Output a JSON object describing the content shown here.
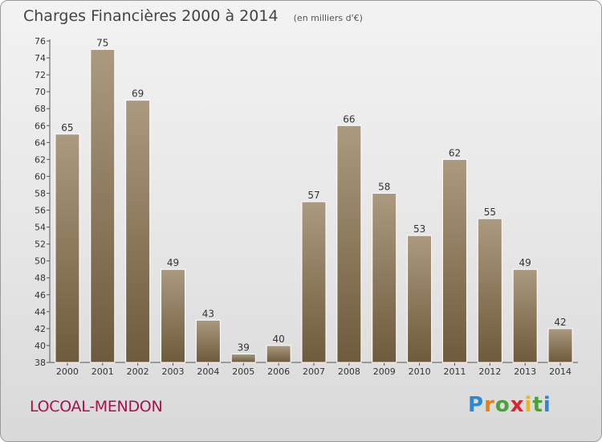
{
  "title": "Charges Financières 2000 à 2014",
  "subtitle": "(en milliers d'€)",
  "commune": "LOCOAL-MENDON",
  "logo": {
    "letters": [
      "P",
      "r",
      "o",
      "x",
      "i",
      "t",
      "i"
    ],
    "colors": [
      "#2e88d0",
      "#e67e1a",
      "#4aa23a",
      "#d8262c",
      "#e6b81a",
      "#4aa23a",
      "#2e88d0"
    ]
  },
  "colors": {
    "bar_top": "#ab9a7f",
    "bar_bottom": "#6e5a3c",
    "commune": "#a8124b"
  },
  "chart_data": {
    "type": "bar",
    "categories": [
      "2000",
      "2001",
      "2002",
      "2003",
      "2004",
      "2005",
      "2006",
      "2007",
      "2008",
      "2009",
      "2010",
      "2011",
      "2012",
      "2013",
      "2014"
    ],
    "values": [
      65,
      75,
      69,
      49,
      43,
      39,
      40,
      57,
      66,
      58,
      53,
      62,
      55,
      49,
      42
    ],
    "ylim": [
      38,
      76
    ],
    "yticks": [
      38,
      40,
      42,
      44,
      46,
      48,
      50,
      52,
      54,
      56,
      58,
      60,
      62,
      64,
      66,
      68,
      70,
      72,
      74,
      76
    ],
    "grid": false,
    "data_labels": true
  }
}
